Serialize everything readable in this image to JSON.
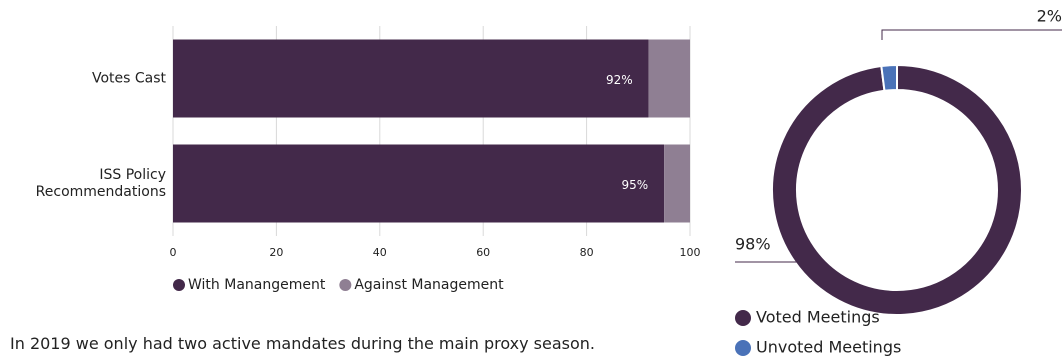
{
  "chart_data": [
    {
      "type": "hbar-stacked",
      "categories": [
        "Votes Cast",
        "ISS Policy Recommendations"
      ],
      "series": [
        {
          "name": "With Manangement",
          "color": "#43294a",
          "values": [
            92,
            95
          ],
          "value_labels": [
            "92%",
            "95%"
          ]
        },
        {
          "name": "Against Management",
          "color": "#8f7f93",
          "values": [
            8,
            5
          ]
        }
      ],
      "xlim": [
        0,
        100
      ],
      "xticks": [
        0,
        20,
        40,
        60,
        80,
        100
      ],
      "grid": true,
      "legend": "bottom"
    },
    {
      "type": "donut",
      "labels": [
        "Voted Meetings",
        "Unvoted Meetings"
      ],
      "values": [
        98,
        2
      ],
      "value_labels": [
        "98%",
        "2%"
      ],
      "colors": [
        "#43294a",
        "#4a72b8"
      ],
      "legend": "bottom"
    }
  ],
  "caption": "In 2019 we only had two active mandates during the main proxy season."
}
